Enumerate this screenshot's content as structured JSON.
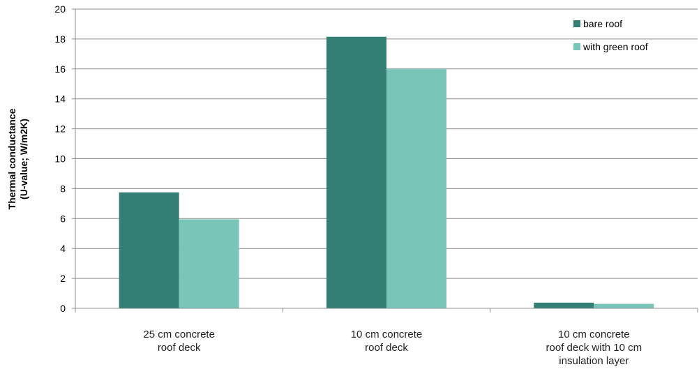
{
  "chart_data": {
    "type": "bar",
    "title": "",
    "ylabel_lines": [
      "Thermal conductance",
      "(U-value; W/m2K)"
    ],
    "xlabel": "",
    "ylim": [
      0,
      20
    ],
    "yticks": [
      0,
      2,
      4,
      6,
      8,
      10,
      12,
      14,
      16,
      18,
      20
    ],
    "grid": true,
    "legend_position": "top-right",
    "categories": [
      [
        "25 cm concrete",
        "roof deck"
      ],
      [
        "10 cm concrete",
        "roof deck"
      ],
      [
        "10 cm concrete",
        "roof deck with 10 cm",
        "insulation layer"
      ]
    ],
    "series": [
      {
        "name": "bare roof",
        "color": "#347f73",
        "values": [
          7.75,
          18.15,
          0.38
        ]
      },
      {
        "name": "with green roof",
        "color": "#79c6b8",
        "values": [
          5.95,
          16.0,
          0.3
        ]
      }
    ]
  }
}
